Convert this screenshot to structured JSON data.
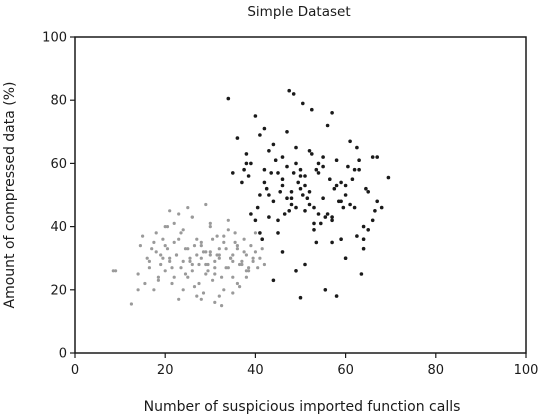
{
  "chart_data": {
    "type": "scatter",
    "title": "Simple Dataset",
    "xlabel": "Number of suspicious imported function calls",
    "ylabel": "Amount of compressed data (%)",
    "xlim": [
      0,
      100
    ],
    "ylim": [
      0,
      100
    ],
    "xticks": [
      "0",
      "20",
      "40",
      "60",
      "80",
      "100"
    ],
    "yticks": [
      "0",
      "20",
      "40",
      "60",
      "80",
      "100"
    ],
    "grid": false,
    "legend": "none",
    "series": [
      {
        "color": "#9a9a9a",
        "marker": "small-dot",
        "x": [
          8.5,
          9.0,
          12.5,
          14.0,
          14.5,
          15.0,
          15.5,
          16.0,
          16.5,
          17.0,
          17.5,
          18.0,
          18.5,
          19.0,
          19.5,
          20.0,
          20.5,
          21.0,
          21.5,
          22.0,
          22.5,
          23.0,
          23.5,
          24.0,
          24.5,
          25.0,
          25.5,
          26.0,
          26.5,
          27.0,
          27.5,
          28.0,
          28.5,
          29.0,
          29.5,
          30.0,
          30.5,
          31.0,
          31.5,
          32.0,
          32.5,
          33.0,
          33.5,
          34.0,
          34.5,
          35.0,
          35.5,
          36.0,
          36.5,
          37.0,
          37.5,
          38.0,
          38.5,
          39.0,
          39.5,
          40.0,
          40.5,
          41.0,
          41.5,
          42.0,
          18.0,
          19.0,
          20.0,
          21.0,
          22.0,
          23.0,
          24.0,
          25.0,
          26.0,
          27.0,
          28.0,
          29.0,
          30.0,
          31.0,
          32.0,
          33.0,
          34.0,
          35.0,
          36.0,
          37.0,
          38.0,
          16.5,
          17.5,
          18.5,
          19.5,
          20.5,
          21.5,
          22.5,
          23.5,
          24.5,
          25.5,
          26.5,
          27.5,
          28.5,
          29.5,
          30.5,
          31.5,
          32.5,
          33.5,
          34.5,
          35.5,
          36.5,
          37.5,
          38.5,
          39.5,
          21.0,
          23.0,
          25.0,
          27.0,
          29.0,
          31.0,
          33.0,
          35.0,
          22.0,
          24.0,
          26.0,
          28.0,
          30.0,
          32.0,
          34.0,
          20.0,
          36.0,
          38.0,
          14.0,
          40.0,
          26.0,
          29.0,
          32.0,
          35.0,
          28.0,
          31.0,
          30.0
        ],
        "y": [
          26.0,
          26.0,
          15.5,
          25.0,
          34.0,
          37.0,
          22.0,
          30.0,
          27.0,
          33.0,
          20.0,
          38.0,
          24.0,
          31.0,
          36.0,
          26.0,
          40.0,
          29.0,
          22.0,
          35.0,
          31.0,
          17.0,
          27.0,
          39.0,
          33.0,
          24.0,
          30.0,
          43.0,
          21.0,
          36.0,
          28.0,
          34.0,
          19.0,
          32.0,
          26.0,
          40.0,
          23.0,
          29.0,
          37.0,
          31.0,
          15.0,
          35.0,
          27.0,
          42.0,
          30.0,
          24.0,
          38.0,
          33.0,
          21.0,
          28.0,
          36.0,
          31.0,
          26.0,
          34.0,
          29.0,
          32.0,
          27.0,
          30.0,
          33.0,
          28.0,
          32.0,
          28.0,
          34.0,
          30.0,
          24.0,
          36.0,
          29.0,
          33.0,
          26.0,
          31.0,
          35.0,
          28.0,
          32.0,
          25.0,
          30.0,
          37.0,
          27.0,
          31.0,
          34.0,
          29.0,
          26.0,
          29.0,
          35.0,
          23.0,
          30.0,
          33.0,
          27.0,
          31.0,
          38.0,
          25.0,
          29.0,
          34.0,
          22.0,
          32.0,
          28.0,
          36.0,
          31.0,
          24.0,
          33.0,
          30.0,
          35.0,
          28.0,
          32.0,
          27.0,
          30.0,
          45.0,
          44.0,
          46.0,
          18.0,
          47.0,
          16.0,
          20.0,
          19.0,
          41.0,
          20.0,
          43.0,
          17.0,
          41.0,
          18.0,
          39.0,
          40.0,
          22.0,
          24.0,
          20.0,
          38.0,
          28.0,
          25.0,
          33.0,
          29.0,
          30.0,
          27.0,
          31.0
        ]
      },
      {
        "color": "#1a1a1a",
        "marker": "small-dot",
        "x": [
          34.0,
          37.0,
          38.0,
          39.0,
          40.0,
          41.0,
          42.0,
          43.0,
          44.0,
          45.0,
          46.0,
          47.0,
          48.0,
          49.0,
          50.0,
          51.0,
          52.0,
          53.0,
          54.0,
          55.0,
          56.0,
          57.0,
          58.0,
          59.0,
          60.0,
          61.0,
          62.0,
          63.0,
          64.0,
          65.0,
          66.0,
          67.0,
          69.5,
          36.0,
          38.5,
          40.5,
          42.5,
          44.5,
          46.5,
          48.5,
          50.5,
          52.5,
          54.5,
          56.5,
          58.5,
          60.5,
          62.5,
          64.5,
          66.5,
          39.0,
          41.0,
          43.0,
          45.0,
          47.0,
          49.0,
          51.0,
          53.0,
          55.0,
          57.0,
          59.0,
          61.0,
          63.0,
          65.0,
          40.0,
          42.0,
          44.0,
          46.0,
          48.0,
          50.0,
          52.0,
          54.0,
          56.0,
          58.0,
          60.0,
          62.0,
          64.0,
          43.5,
          45.5,
          47.5,
          49.5,
          51.5,
          53.5,
          55.5,
          57.5,
          59.5,
          61.5,
          41.5,
          43.0,
          45.0,
          47.0,
          49.0,
          51.0,
          53.0,
          55.0,
          57.0,
          59.0,
          46.0,
          48.0,
          50.0,
          52.0,
          54.0,
          48.5,
          50.5,
          52.5,
          37.5,
          67.0,
          66.0,
          63.5,
          35.0,
          68.0,
          55.5,
          44.0,
          58.0,
          42.0,
          60.0,
          49.0,
          46.0,
          51.0,
          53.5,
          38.0,
          62.5,
          64.0,
          41.0,
          57.0,
          47.5,
          50.0
        ],
        "y": [
          80.5,
          54.0,
          63.0,
          44.0,
          75.0,
          38.0,
          58.0,
          50.0,
          66.0,
          42.0,
          55.0,
          70.0,
          47.0,
          60.0,
          52.0,
          45.0,
          64.0,
          39.0,
          57.0,
          49.0,
          72.0,
          43.0,
          61.0,
          36.0,
          53.0,
          67.0,
          46.0,
          58.0,
          40.0,
          51.0,
          62.0,
          48.0,
          55.5,
          68.0,
          56.0,
          46.0,
          52.0,
          61.0,
          44.0,
          57.0,
          50.0,
          63.0,
          41.0,
          55.0,
          48.0,
          59.0,
          37.0,
          52.0,
          45.0,
          60.0,
          50.0,
          43.0,
          57.0,
          49.0,
          65.0,
          53.0,
          46.0,
          59.0,
          42.0,
          54.0,
          47.0,
          61.0,
          39.0,
          42.0,
          54.0,
          48.0,
          62.0,
          51.0,
          56.0,
          47.0,
          60.0,
          44.0,
          53.0,
          50.0,
          58.0,
          36.0,
          57.0,
          51.0,
          45.0,
          54.0,
          49.0,
          58.0,
          43.0,
          52.0,
          46.0,
          55.0,
          36.0,
          64.0,
          38.0,
          59.0,
          46.0,
          56.0,
          41.0,
          62.0,
          35.0,
          48.0,
          53.0,
          49.0,
          58.0,
          51.0,
          44.0,
          82.0,
          79.0,
          77.0,
          58.0,
          62.0,
          42.0,
          25.0,
          57.0,
          46.0,
          20.0,
          23.0,
          18.0,
          71.0,
          30.0,
          26.0,
          32.0,
          28.0,
          35.0,
          60.0,
          65.0,
          33.0,
          69.0,
          76.0,
          83.0,
          17.5
        ]
      }
    ]
  }
}
